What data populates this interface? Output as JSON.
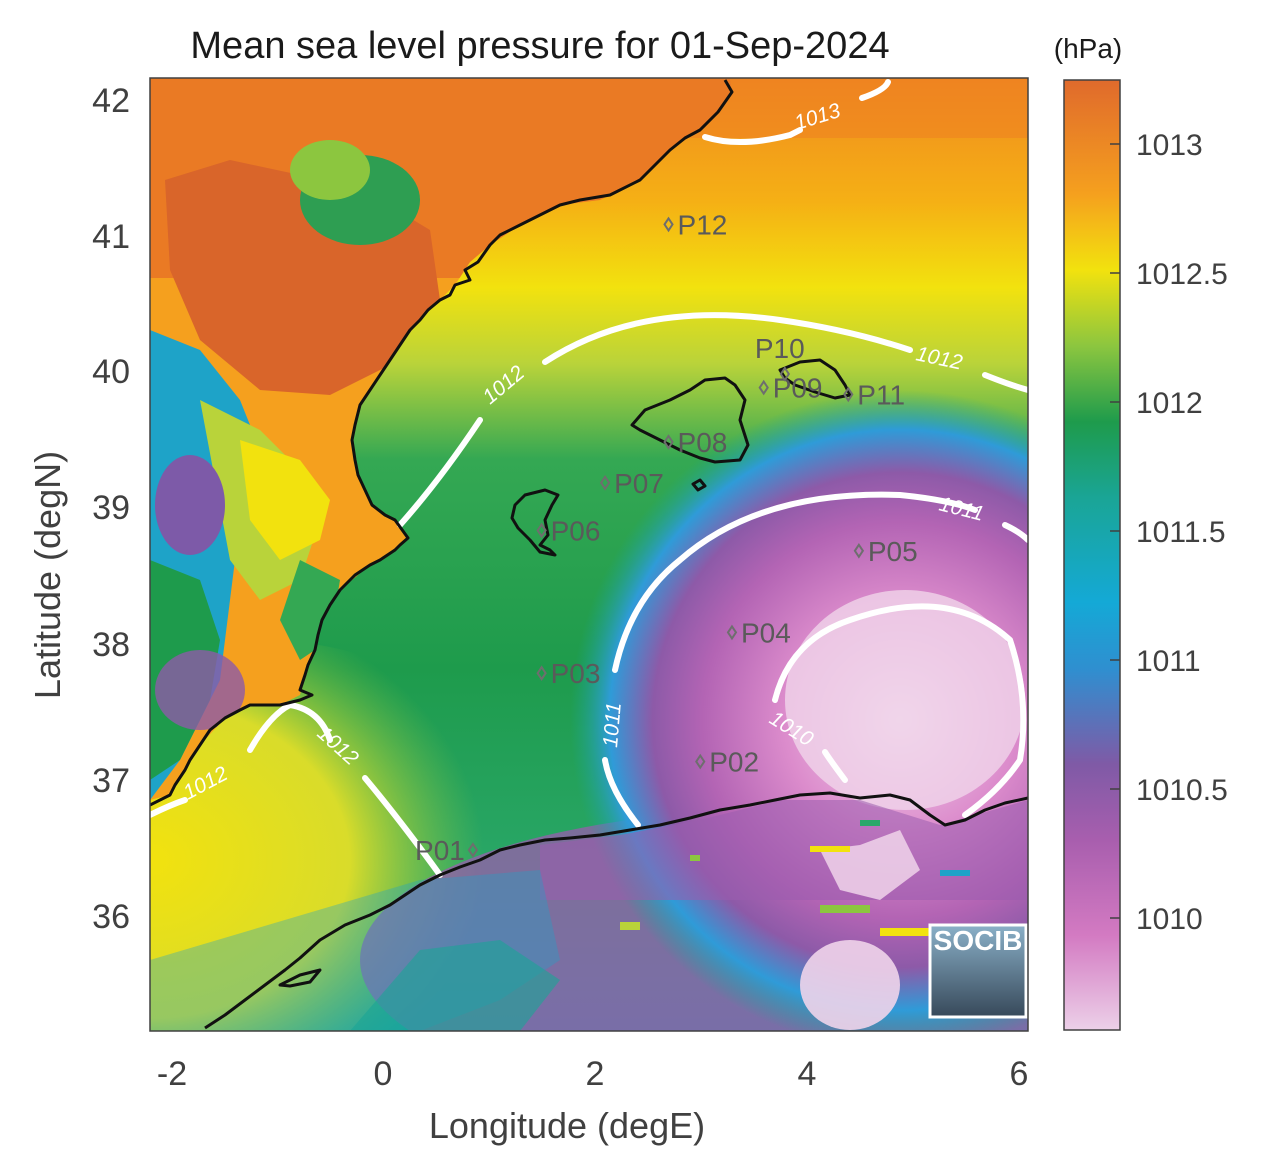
{
  "title": "Mean sea level pressure for 01-Sep-2024",
  "xlabel": "Longitude (degE)",
  "ylabel": "Latitude (degN)",
  "x_ticks": [
    "-2",
    "0",
    "2",
    "4",
    "6"
  ],
  "y_ticks": [
    "36",
    "37",
    "38",
    "39",
    "40",
    "41",
    "42"
  ],
  "colorbar": {
    "unit": "(hPa)",
    "ticks": [
      "1010",
      "1010.5",
      "1011",
      "1011.5",
      "1012",
      "1012.5",
      "1013"
    ],
    "range": [
      1009.6,
      1013.3
    ],
    "colormap": [
      "#e8c8e4",
      "#c25bb0",
      "#8d5aa8",
      "#1f9fd8",
      "#19a8a8",
      "#1e9b4c",
      "#b9d33a",
      "#f2e20e",
      "#f28c1e",
      "#e06a2c"
    ]
  },
  "contour_labels": [
    "1013",
    "1012",
    "1012",
    "1011",
    "1011",
    "1010",
    "1012",
    "1012"
  ],
  "stations": [
    {
      "id": "P01",
      "lon": 0.85,
      "lat": 36.5
    },
    {
      "id": "P02",
      "lon": 3.0,
      "lat": 37.15
    },
    {
      "id": "P03",
      "lon": 1.5,
      "lat": 37.8
    },
    {
      "id": "P04",
      "lon": 3.3,
      "lat": 38.1
    },
    {
      "id": "P05",
      "lon": 4.5,
      "lat": 38.7
    },
    {
      "id": "P06",
      "lon": 1.5,
      "lat": 38.85
    },
    {
      "id": "P07",
      "lon": 2.1,
      "lat": 39.2
    },
    {
      "id": "P08",
      "lon": 2.7,
      "lat": 39.5
    },
    {
      "id": "P09",
      "lon": 3.6,
      "lat": 39.9
    },
    {
      "id": "P10",
      "lon": 3.8,
      "lat": 40.0
    },
    {
      "id": "P11",
      "lon": 4.4,
      "lat": 39.85
    },
    {
      "id": "P12",
      "lon": 2.7,
      "lat": 41.1
    }
  ],
  "logo": {
    "text": "SOCIB"
  },
  "colors": {
    "coastline": "#111111",
    "contour": "#ffffff",
    "frame": "#404040",
    "station_marker": "#6e6e6e"
  }
}
